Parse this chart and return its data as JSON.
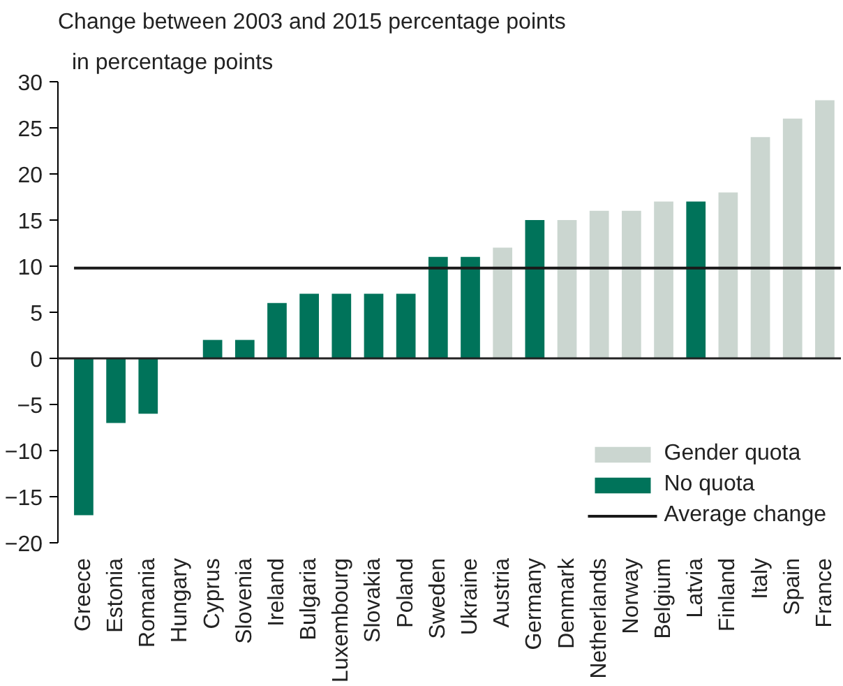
{
  "chart_data": {
    "type": "bar",
    "title": "Change between 2003 and 2015 percentage points",
    "ylabel": "in percentage points",
    "categories": [
      "Greece",
      "Estonia",
      "Romania",
      "Hungary",
      "Cyprus",
      "Slovenia",
      "Ireland",
      "Bulgaria",
      "Luxembourg",
      "Slovakia",
      "Poland",
      "Sweden",
      "Ukraine",
      "Austria",
      "Germany",
      "Denmark",
      "Netherlands",
      "Norway",
      "Belgium",
      "Latvia",
      "Finland",
      "Italy",
      "Spain",
      "France"
    ],
    "series": [
      {
        "name": "Gender quota",
        "color": "#cbd6d0",
        "values": [
          null,
          null,
          null,
          null,
          null,
          null,
          null,
          null,
          null,
          null,
          null,
          null,
          null,
          12,
          null,
          15,
          16,
          16,
          17,
          null,
          18,
          24,
          26,
          28
        ]
      },
      {
        "name": "No quota",
        "color": "#00735a",
        "values": [
          -17,
          -7,
          -6,
          0,
          2,
          2,
          6,
          7,
          7,
          7,
          7,
          11,
          11,
          null,
          15,
          null,
          null,
          null,
          null,
          17,
          null,
          null,
          null,
          null
        ]
      }
    ],
    "ref_lines": [
      {
        "axis": "y",
        "value": 9.8,
        "label": "Average change",
        "color": "#1a1a1a",
        "line_style": "solid"
      }
    ],
    "ylim": [
      -20,
      30
    ],
    "yticks": [
      -20,
      -15,
      -10,
      -5,
      0,
      5,
      10,
      15,
      20,
      25,
      30
    ],
    "grid": false,
    "legend": "bottom right"
  }
}
